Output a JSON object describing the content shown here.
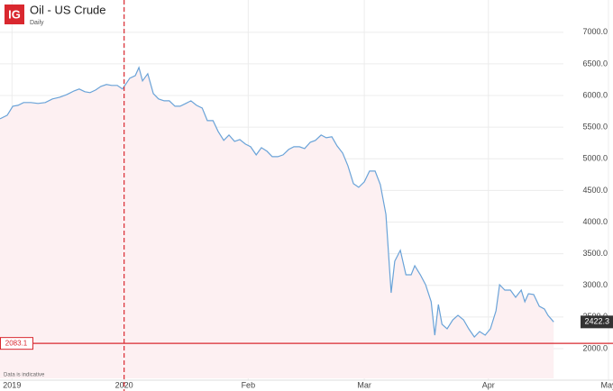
{
  "chart_data": {
    "type": "area-line",
    "logo": "IG",
    "title": "Oil - US Crude",
    "subtitle": "Daily",
    "note": "Data is indicative",
    "x": [
      -31,
      -29.2,
      -27.8,
      -26.5,
      -25.1,
      -23.3,
      -21.5,
      -19.7,
      -17.9,
      -16.1,
      -14.3,
      -12.5,
      -11.2,
      -9.8,
      -8.5,
      -7.1,
      -5.8,
      -4.4,
      -3.1,
      -1.7,
      -0.4,
      1.4,
      2.8,
      3.7,
      4.6,
      5.9,
      7.3,
      8.6,
      10,
      11.3,
      12.7,
      14,
      15.4,
      16.7,
      18.1,
      19.5,
      20.8,
      22.2,
      23.5,
      24.9,
      26.2,
      27.6,
      28.9,
      30.3,
      31.6,
      33,
      34.3,
      35.7,
      37,
      38.4,
      39.7,
      41.1,
      42.4,
      43.8,
      45.1,
      46.5,
      47.8,
      49.2,
      50.5,
      51.9,
      53.2,
      54.6,
      55.9,
      57.3,
      58.6,
      60,
      61.3,
      62.7,
      64,
      65.4,
      66.7,
      67.6,
      69,
      70.4,
      71.7,
      72.6,
      74,
      75.3,
      76.7,
      77.6,
      78.5,
      79.4,
      80.7,
      82.1,
      83.4,
      84.8,
      86.1,
      87.5,
      88.8,
      90.2,
      91.5,
      92.9,
      93.8,
      95.1,
      96.5,
      97.8,
      99.2,
      100.1,
      101,
      102.3,
      103.7,
      105,
      105.9,
      107.3
    ],
    "series": [
      {
        "name": "Oil - US Crude",
        "color": "#6aa3d8",
        "values": [
          5632,
          5689,
          5832,
          5846,
          5889,
          5889,
          5875,
          5889,
          5946,
          5974,
          6017,
          6074,
          6103,
          6060,
          6046,
          6088,
          6145,
          6174,
          6160,
          6160,
          6103,
          6274,
          6316,
          6444,
          6231,
          6345,
          6031,
          5946,
          5917,
          5917,
          5832,
          5832,
          5875,
          5917,
          5846,
          5803,
          5604,
          5604,
          5433,
          5291,
          5376,
          5276,
          5305,
          5234,
          5191,
          5063,
          5177,
          5120,
          5034,
          5034,
          5063,
          5148,
          5191,
          5191,
          5162,
          5262,
          5291,
          5376,
          5333,
          5348,
          5205,
          5091,
          4892,
          4607,
          4550,
          4635,
          4806,
          4806,
          4593,
          4123,
          2883,
          3382,
          3553,
          3168,
          3168,
          3311,
          3168,
          3011,
          2741,
          2214,
          2698,
          2385,
          2313,
          2456,
          2527,
          2456,
          2313,
          2185,
          2271,
          2214,
          2313,
          2598,
          3011,
          2926,
          2926,
          2812,
          2926,
          2741,
          2869,
          2855,
          2670,
          2627,
          2527,
          2422.3
        ]
      }
    ],
    "area_color": "#fdf0f2",
    "reference_line": 2083.1,
    "reference_color": "#d9282f",
    "marker_x": 0,
    "xlim": [
      -31,
      121
    ],
    "xticks": [
      {
        "value": -28,
        "label": "2019"
      },
      {
        "value": 0,
        "label": "2020"
      },
      {
        "value": 31,
        "label": "Feb"
      },
      {
        "value": 60,
        "label": "Mar"
      },
      {
        "value": 91,
        "label": "Apr"
      },
      {
        "value": 121,
        "label": "May"
      }
    ],
    "ylim": [
      1530,
      7510
    ],
    "yticks": [
      {
        "value": 2000,
        "label": "2000.0"
      },
      {
        "value": 2500,
        "label": "2500.0"
      },
      {
        "value": 3000,
        "label": "3000.0"
      },
      {
        "value": 3500,
        "label": "3500.0"
      },
      {
        "value": 4000,
        "label": "4000.0"
      },
      {
        "value": 4500,
        "label": "4500.0"
      },
      {
        "value": 5000,
        "label": "5000.0"
      },
      {
        "value": 5500,
        "label": "5500.0"
      },
      {
        "value": 6000,
        "label": "6000.0"
      },
      {
        "value": 6500,
        "label": "6500.0"
      },
      {
        "value": 7000,
        "label": "7000.0"
      }
    ],
    "grid": true
  }
}
